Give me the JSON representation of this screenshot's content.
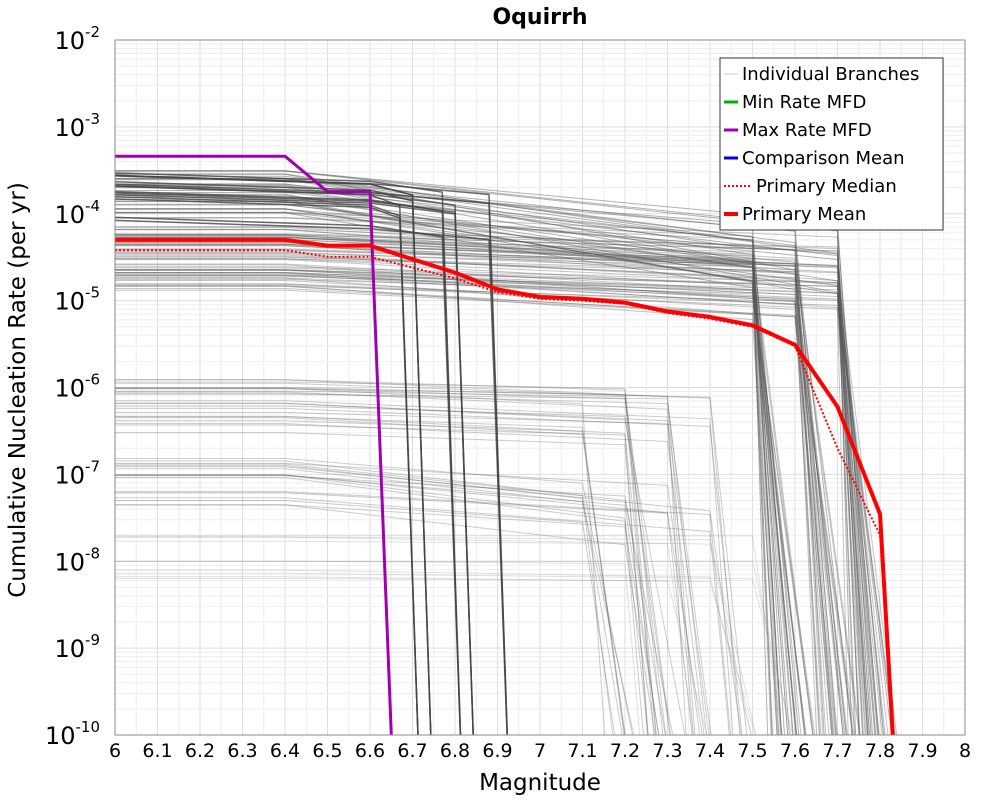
{
  "chart_data": {
    "type": "line",
    "title": "Oquirrh",
    "xlabel": "Magnitude",
    "ylabel": "Cumulative Nucleation Rate (per yr)",
    "xlim": [
      6,
      8
    ],
    "ylim": [
      1e-10,
      0.01
    ],
    "y_scale": "log",
    "grid": true,
    "x_ticks": [
      "6",
      "6.1",
      "6.2",
      "6.3",
      "6.4",
      "6.5",
      "6.6",
      "6.7",
      "6.8",
      "6.9",
      "7",
      "7.1",
      "7.2",
      "7.3",
      "7.4",
      "7.5",
      "7.6",
      "7.7",
      "7.8",
      "7.9",
      "8"
    ],
    "y_ticks": [
      {
        "value": 1e-10,
        "base": "10",
        "exp": "-10"
      },
      {
        "value": 1e-09,
        "base": "10",
        "exp": "-9"
      },
      {
        "value": 1e-08,
        "base": "10",
        "exp": "-8"
      },
      {
        "value": 1e-07,
        "base": "10",
        "exp": "-7"
      },
      {
        "value": 1e-06,
        "base": "10",
        "exp": "-6"
      },
      {
        "value": 1e-05,
        "base": "10",
        "exp": "-5"
      },
      {
        "value": 0.0001,
        "base": "10",
        "exp": "-4"
      },
      {
        "value": 0.001,
        "base": "10",
        "exp": "-3"
      },
      {
        "value": 0.01,
        "base": "10",
        "exp": "-2"
      }
    ],
    "legend_position": "top-right",
    "legend": [
      {
        "label": "Individual Branches",
        "color": "#c8c8c8",
        "style": "solid-thin"
      },
      {
        "label": "Min Rate MFD",
        "color": "#00b000",
        "style": "solid"
      },
      {
        "label": "Max Rate MFD",
        "color": "#a000b0",
        "style": "solid"
      },
      {
        "label": "Comparison Mean",
        "color": "#0000e0",
        "style": "solid"
      },
      {
        "label": "Primary Median",
        "color": "#ff0000",
        "style": "dotted"
      },
      {
        "label": "Primary Mean",
        "color": "#ff0000",
        "style": "solid-thick"
      }
    ],
    "series": [
      {
        "name": "Max Rate MFD",
        "color": "#a000b0",
        "x": [
          6.0,
          6.4,
          6.5,
          6.6,
          6.65
        ],
        "y": [
          0.00046,
          0.00046,
          0.00018,
          0.00018,
          1e-10
        ]
      },
      {
        "name": "Primary Mean",
        "color": "#ff0000",
        "x": [
          6.0,
          6.4,
          6.5,
          6.6,
          6.7,
          6.8,
          6.9,
          7.0,
          7.1,
          7.2,
          7.3,
          7.4,
          7.5,
          7.6,
          7.7,
          7.8,
          7.83
        ],
        "y": [
          5e-05,
          5e-05,
          4.3e-05,
          4.3e-05,
          3e-05,
          2.1e-05,
          1.35e-05,
          1.1e-05,
          1.05e-05,
          9.5e-06,
          7.5e-06,
          6.5e-06,
          5.2e-06,
          3.1e-06,
          6e-07,
          3.5e-08,
          1e-10
        ]
      },
      {
        "name": "Primary Median",
        "color": "#ff0000",
        "x": [
          6.0,
          6.4,
          6.5,
          6.6,
          6.7,
          6.8,
          6.9,
          7.0,
          7.1,
          7.2,
          7.3,
          7.4,
          7.5,
          7.6,
          7.7,
          7.8,
          7.83
        ],
        "y": [
          3.8e-05,
          3.8e-05,
          3.2e-05,
          3.2e-05,
          2.4e-05,
          1.8e-05,
          1.25e-05,
          1.05e-05,
          1e-05,
          9.2e-06,
          7.2e-06,
          6.2e-06,
          5e-06,
          3e-06,
          2e-07,
          2e-08,
          1e-10
        ]
      }
    ]
  }
}
